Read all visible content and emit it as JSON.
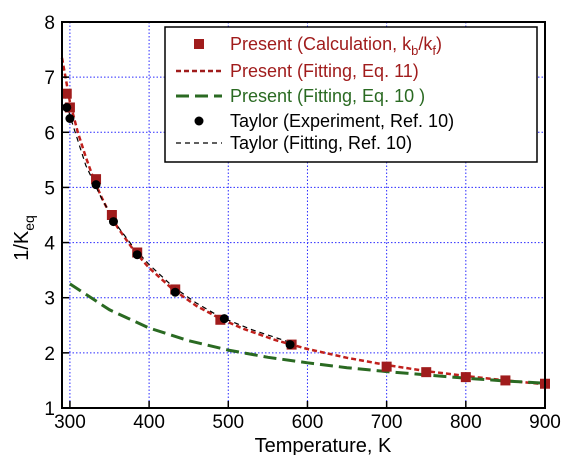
{
  "chart_data": {
    "type": "line",
    "xlabel": "Temperature, K",
    "ylabel_main": "1/K",
    "ylabel_sub": "eq",
    "xlim": [
      290,
      900
    ],
    "ylim": [
      1,
      8
    ],
    "xticks": [
      300,
      400,
      500,
      600,
      700,
      800,
      900
    ],
    "yticks": [
      1,
      2,
      3,
      4,
      5,
      6,
      7,
      8
    ],
    "grid": true,
    "legend_position": "top-right",
    "legend": [
      {
        "main": "Present (Calculation, k",
        "sub1": "b",
        "mid": "/k",
        "sub2": "f",
        "end": ")",
        "color": "#a01c1c",
        "style": "square"
      },
      {
        "main": "Present (Fitting, Eq. 11)",
        "color": "#a01c1c",
        "style": "short-dash"
      },
      {
        "main": "Present (Fitting, Eq. 10 )",
        "color": "#2a6a22",
        "style": "long-dash"
      },
      {
        "main": "Taylor (Experiment, Ref. 10)",
        "color": "#000000",
        "style": "dot"
      },
      {
        "main": "Taylor (Fitting, Ref. 10)",
        "color": "#000000",
        "style": "thin-dash"
      }
    ],
    "series": [
      {
        "name": "Present (Calculation, kb/kf)",
        "color": "#a01c1c",
        "marker": "square",
        "x": [
          296,
          300,
          333,
          353,
          385,
          433,
          490,
          580,
          700,
          750,
          800,
          850,
          900
        ],
        "y": [
          6.7,
          6.45,
          5.15,
          4.5,
          3.82,
          3.15,
          2.6,
          2.15,
          1.75,
          1.65,
          1.56,
          1.5,
          1.44
        ]
      },
      {
        "name": "Present (Fitting, Eq. 11)",
        "color": "#c0201c",
        "style": "short-dash",
        "x": [
          290,
          295,
          300,
          310,
          320,
          330,
          340,
          350,
          360,
          380,
          400,
          430,
          460,
          490,
          520,
          560,
          600,
          650,
          700,
          750,
          800,
          850,
          900
        ],
        "y": [
          7.35,
          6.95,
          6.55,
          6.0,
          5.55,
          5.15,
          4.82,
          4.53,
          4.28,
          3.87,
          3.54,
          3.15,
          2.85,
          2.62,
          2.43,
          2.23,
          2.07,
          1.91,
          1.78,
          1.67,
          1.58,
          1.5,
          1.43
        ]
      },
      {
        "name": "Present (Fitting, Eq. 10 )",
        "color": "#2a6a22",
        "style": "long-dash",
        "x": [
          300,
          350,
          400,
          450,
          500,
          550,
          600,
          650,
          700,
          750,
          800,
          850,
          900
        ],
        "y": [
          3.25,
          2.78,
          2.45,
          2.22,
          2.05,
          1.92,
          1.82,
          1.73,
          1.66,
          1.6,
          1.54,
          1.49,
          1.45
        ]
      },
      {
        "name": "Taylor (Experiment, Ref. 10)",
        "color": "#000000",
        "marker": "dot",
        "x": [
          296,
          300,
          333,
          355,
          385,
          433,
          495,
          578
        ],
        "y": [
          6.45,
          6.25,
          5.05,
          4.38,
          3.78,
          3.1,
          2.62,
          2.15
        ]
      },
      {
        "name": "Taylor (Fitting, Ref. 10)",
        "color": "#000000",
        "style": "thin-dash",
        "x": [
          293,
          300,
          320,
          340,
          360,
          380,
          400,
          430,
          460,
          490,
          530,
          580
        ],
        "y": [
          6.7,
          6.3,
          5.4,
          4.8,
          4.3,
          3.92,
          3.6,
          3.2,
          2.9,
          2.65,
          2.42,
          2.18
        ]
      }
    ]
  }
}
